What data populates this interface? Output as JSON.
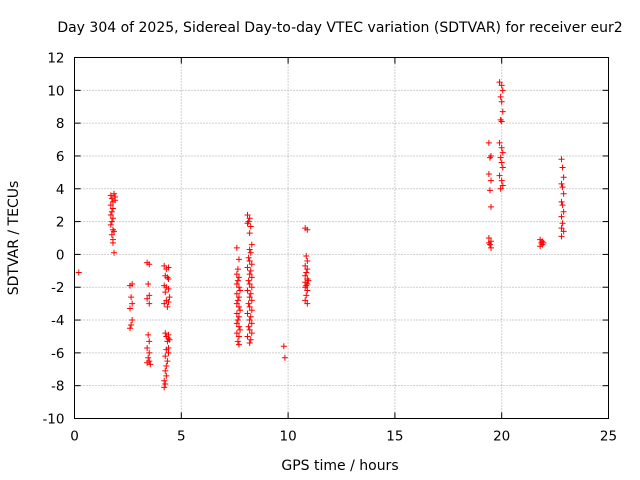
{
  "chart_data": {
    "type": "scatter",
    "title": "Day 304 of 2025, Sidereal Day-to-day VTEC variation (SDTVAR) for receiver eur2",
    "xlabel": "GPS time / hours",
    "ylabel": "SDTVAR / TECUs",
    "xlim": [
      0,
      25
    ],
    "ylim": [
      -10,
      12
    ],
    "x_ticks": [
      0,
      5,
      10,
      15,
      20,
      25
    ],
    "y_ticks": [
      -10,
      -8,
      -6,
      -4,
      -2,
      0,
      2,
      4,
      6,
      8,
      10,
      12
    ],
    "grid": true,
    "marker": "+",
    "color": "#ff0000",
    "series": [
      {
        "name": "SDTVAR",
        "points": [
          [
            0.2,
            -1.1
          ],
          [
            1.7,
            3.6
          ],
          [
            1.75,
            3.4
          ],
          [
            1.8,
            3.2
          ],
          [
            1.7,
            3.0
          ],
          [
            1.8,
            2.8
          ],
          [
            1.75,
            2.6
          ],
          [
            1.7,
            2.4
          ],
          [
            1.8,
            2.2
          ],
          [
            1.75,
            2.0
          ],
          [
            1.7,
            1.8
          ],
          [
            1.8,
            1.5
          ],
          [
            1.75,
            1.2
          ],
          [
            1.8,
            0.9
          ],
          [
            1.8,
            0.7
          ],
          [
            1.85,
            0.1
          ],
          [
            1.85,
            3.7
          ],
          [
            1.9,
            3.5
          ],
          [
            1.9,
            3.3
          ],
          [
            1.85,
            1.4
          ],
          [
            2.6,
            -1.9
          ],
          [
            2.7,
            -1.8
          ],
          [
            2.65,
            -2.6
          ],
          [
            2.7,
            -3.0
          ],
          [
            2.6,
            -3.3
          ],
          [
            2.7,
            -4.0
          ],
          [
            2.65,
            -4.3
          ],
          [
            2.6,
            -4.5
          ],
          [
            3.4,
            -0.5
          ],
          [
            3.5,
            -0.6
          ],
          [
            3.45,
            -1.8
          ],
          [
            3.5,
            -2.5
          ],
          [
            3.4,
            -2.7
          ],
          [
            3.5,
            -3.0
          ],
          [
            3.45,
            -4.9
          ],
          [
            3.5,
            -5.3
          ],
          [
            3.4,
            -5.7
          ],
          [
            3.5,
            -6.0
          ],
          [
            3.45,
            -6.3
          ],
          [
            3.5,
            -6.5
          ],
          [
            3.4,
            -6.6
          ],
          [
            3.55,
            -6.7
          ],
          [
            4.2,
            -0.7
          ],
          [
            4.3,
            -0.9
          ],
          [
            4.25,
            -1.3
          ],
          [
            4.35,
            -1.4
          ],
          [
            4.2,
            -1.9
          ],
          [
            4.3,
            -2.0
          ],
          [
            4.4,
            -2.1
          ],
          [
            4.25,
            -2.3
          ],
          [
            4.3,
            -2.8
          ],
          [
            4.4,
            -2.9
          ],
          [
            4.2,
            -3.0
          ],
          [
            4.35,
            -3.2
          ],
          [
            4.25,
            -4.8
          ],
          [
            4.3,
            -5.0
          ],
          [
            4.4,
            -5.1
          ],
          [
            4.35,
            -5.3
          ],
          [
            4.3,
            -5.8
          ],
          [
            4.25,
            -6.2
          ],
          [
            4.35,
            -6.5
          ],
          [
            4.3,
            -6.8
          ],
          [
            4.25,
            -7.1
          ],
          [
            4.3,
            -7.4
          ],
          [
            4.2,
            -7.7
          ],
          [
            4.25,
            -7.9
          ],
          [
            4.2,
            -8.1
          ],
          [
            4.4,
            -0.8
          ],
          [
            4.4,
            -1.5
          ],
          [
            4.45,
            -2.6
          ],
          [
            4.4,
            -4.9
          ],
          [
            4.45,
            -5.2
          ],
          [
            4.4,
            -5.7
          ],
          [
            4.4,
            -6.0
          ],
          [
            7.6,
            0.4
          ],
          [
            7.7,
            -0.3
          ],
          [
            7.65,
            -0.9
          ],
          [
            7.6,
            -1.2
          ],
          [
            7.7,
            -1.4
          ],
          [
            7.65,
            -1.6
          ],
          [
            7.6,
            -1.8
          ],
          [
            7.7,
            -2.0
          ],
          [
            7.75,
            -2.2
          ],
          [
            7.6,
            -2.4
          ],
          [
            7.7,
            -2.6
          ],
          [
            7.65,
            -2.8
          ],
          [
            7.6,
            -3.0
          ],
          [
            7.7,
            -3.2
          ],
          [
            7.75,
            -3.4
          ],
          [
            7.6,
            -3.6
          ],
          [
            7.7,
            -3.8
          ],
          [
            7.65,
            -4.0
          ],
          [
            7.6,
            -4.2
          ],
          [
            7.7,
            -4.4
          ],
          [
            7.75,
            -4.6
          ],
          [
            7.6,
            -4.8
          ],
          [
            7.7,
            -5.0
          ],
          [
            7.65,
            -5.3
          ],
          [
            7.7,
            -5.5
          ],
          [
            8.1,
            2.4
          ],
          [
            8.2,
            2.2
          ],
          [
            8.15,
            2.0
          ],
          [
            8.1,
            1.9
          ],
          [
            8.25,
            1.7
          ],
          [
            8.2,
            1.3
          ],
          [
            8.3,
            0.6
          ],
          [
            8.2,
            0.3
          ],
          [
            8.25,
            0.1
          ],
          [
            8.15,
            -0.2
          ],
          [
            8.2,
            -0.4
          ],
          [
            8.3,
            -0.6
          ],
          [
            8.1,
            -0.8
          ],
          [
            8.25,
            -1.0
          ],
          [
            8.2,
            -1.2
          ],
          [
            8.3,
            -1.4
          ],
          [
            8.15,
            -1.6
          ],
          [
            8.2,
            -1.8
          ],
          [
            8.3,
            -2.0
          ],
          [
            8.1,
            -2.2
          ],
          [
            8.25,
            -2.4
          ],
          [
            8.2,
            -2.6
          ],
          [
            8.3,
            -2.8
          ],
          [
            8.15,
            -3.0
          ],
          [
            8.2,
            -3.2
          ],
          [
            8.3,
            -3.4
          ],
          [
            8.1,
            -3.6
          ],
          [
            8.25,
            -3.8
          ],
          [
            8.2,
            -4.0
          ],
          [
            8.3,
            -4.2
          ],
          [
            8.15,
            -4.4
          ],
          [
            8.2,
            -4.6
          ],
          [
            8.3,
            -4.8
          ],
          [
            8.1,
            -5.0
          ],
          [
            8.25,
            -5.2
          ],
          [
            8.2,
            -5.4
          ],
          [
            9.8,
            -5.6
          ],
          [
            9.85,
            -6.3
          ],
          [
            10.8,
            1.6
          ],
          [
            10.9,
            1.5
          ],
          [
            10.85,
            -0.1
          ],
          [
            10.9,
            -0.4
          ],
          [
            10.8,
            -0.7
          ],
          [
            10.9,
            -0.9
          ],
          [
            10.85,
            -1.1
          ],
          [
            10.8,
            -1.3
          ],
          [
            10.9,
            -1.5
          ],
          [
            10.95,
            -1.6
          ],
          [
            10.8,
            -1.7
          ],
          [
            10.9,
            -1.8
          ],
          [
            10.85,
            -1.9
          ],
          [
            10.8,
            -2.0
          ],
          [
            10.9,
            -2.2
          ],
          [
            10.85,
            -2.5
          ],
          [
            10.8,
            -2.8
          ],
          [
            10.9,
            -3.0
          ],
          [
            19.4,
            6.8
          ],
          [
            19.5,
            6.0
          ],
          [
            19.45,
            5.9
          ],
          [
            19.4,
            4.9
          ],
          [
            19.5,
            4.5
          ],
          [
            19.45,
            3.9
          ],
          [
            19.5,
            2.9
          ],
          [
            19.4,
            1.0
          ],
          [
            19.5,
            0.8
          ],
          [
            19.45,
            0.6
          ],
          [
            19.5,
            0.4
          ],
          [
            19.4,
            0.7
          ],
          [
            19.9,
            10.5
          ],
          [
            20.0,
            10.3
          ],
          [
            20.05,
            10.0
          ],
          [
            19.95,
            9.6
          ],
          [
            20.0,
            9.3
          ],
          [
            20.05,
            8.7
          ],
          [
            19.95,
            8.2
          ],
          [
            20.0,
            8.1
          ],
          [
            19.9,
            6.8
          ],
          [
            20.0,
            6.5
          ],
          [
            20.05,
            6.2
          ],
          [
            19.95,
            5.9
          ],
          [
            20.0,
            5.6
          ],
          [
            20.05,
            5.3
          ],
          [
            19.9,
            4.8
          ],
          [
            20.0,
            4.5
          ],
          [
            20.05,
            4.2
          ],
          [
            19.95,
            4.0
          ],
          [
            21.8,
            0.9
          ],
          [
            21.9,
            0.8
          ],
          [
            21.85,
            0.7
          ],
          [
            21.9,
            0.6
          ],
          [
            21.8,
            0.5
          ],
          [
            21.95,
            0.7
          ],
          [
            22.8,
            5.8
          ],
          [
            22.85,
            5.3
          ],
          [
            22.9,
            4.7
          ],
          [
            22.8,
            4.3
          ],
          [
            22.85,
            4.1
          ],
          [
            22.9,
            3.7
          ],
          [
            22.8,
            3.2
          ],
          [
            22.85,
            3.0
          ],
          [
            22.9,
            2.6
          ],
          [
            22.8,
            2.3
          ],
          [
            22.85,
            1.9
          ],
          [
            22.8,
            1.6
          ],
          [
            22.9,
            1.4
          ],
          [
            22.8,
            1.1
          ]
        ]
      }
    ]
  }
}
